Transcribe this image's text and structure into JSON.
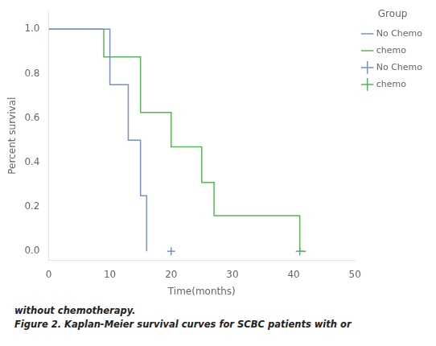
{
  "chart_data": {
    "type": "line",
    "x_label": "Time(months)",
    "y_label": "Percent survival",
    "legend_title": "Group",
    "legend": "right",
    "grid": false,
    "annotations": [
      "without chemotherapy.",
      "Figure 2.  Kaplan-Meier survival curves for SCBC patients with or"
    ],
    "xlim": [
      0,
      50
    ],
    "xticks": [
      0,
      10,
      20,
      30,
      40,
      50
    ],
    "ylim": [
      -0.04,
      1.08
    ],
    "yticks": [
      {
        "value": 0.0,
        "label": "0.0"
      },
      0.2,
      0.4,
      0.6,
      0.8,
      {
        "value": 1.0,
        "label": "1.0"
      }
    ],
    "series": [
      {
        "name": "No Chemo",
        "type": "line",
        "line_style": "steps-post",
        "color": "#7b8ec8",
        "x": [
          0,
          10,
          10,
          13,
          13,
          15,
          15,
          16,
          16
        ],
        "values": [
          1.0,
          1.0,
          0.75,
          0.75,
          0.5,
          0.5,
          0.25,
          0.25,
          0.0
        ]
      },
      {
        "name": "chemo",
        "type": "line",
        "line_style": "steps-post",
        "color": "#5ab55a",
        "x": [
          0,
          9,
          9,
          15,
          15,
          20,
          20,
          25,
          25,
          27,
          27,
          41,
          41,
          42
        ],
        "values": [
          1.0,
          1.0,
          0.875,
          0.875,
          0.625,
          0.625,
          0.47,
          0.47,
          0.31,
          0.31,
          0.16,
          0.16,
          0.0,
          0.0
        ]
      },
      {
        "name": "No Chemo",
        "type": "scatter",
        "marker": "+",
        "color": "#7b8ec8",
        "x": [
          20,
          41
        ],
        "values": [
          0.0,
          0.0
        ]
      },
      {
        "name": "chemo",
        "type": "scatter",
        "marker": "+",
        "color": "#5ab55a",
        "x": [],
        "values": []
      }
    ]
  }
}
